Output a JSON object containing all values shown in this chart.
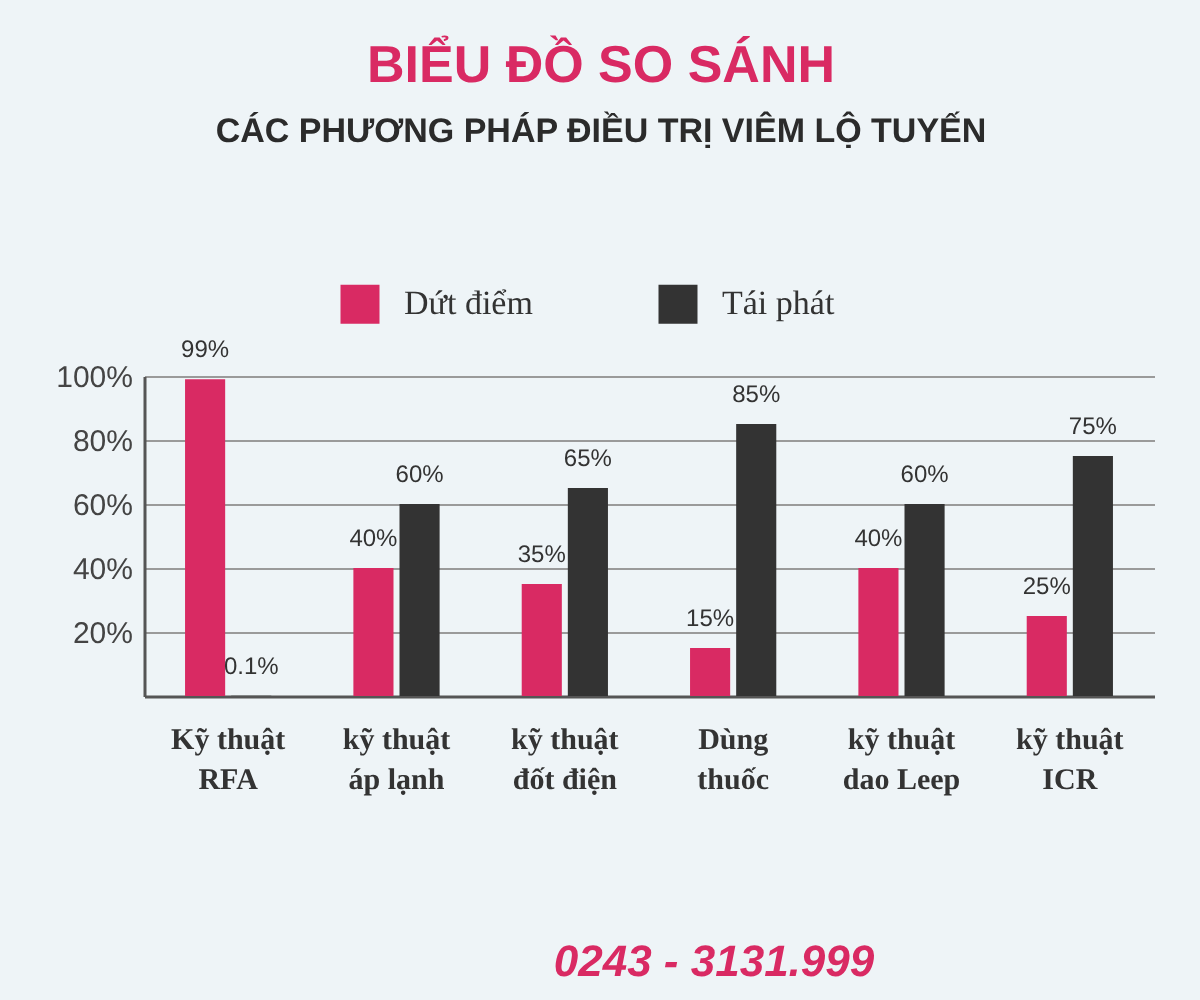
{
  "chart_data": {
    "type": "bar",
    "title": "BIỂU ĐỒ SO SÁNH",
    "subtitle": "CÁC PHƯƠNG PHÁP ĐIỀU TRỊ VIÊM LỘ TUYẾN",
    "categories": [
      "Kỹ thuật\nRFA",
      "kỹ thuật\náp lạnh",
      "kỹ thuật\nđốt điện",
      "Dùng\nthuốc",
      "kỹ thuật\ndao Leep",
      "kỹ thuật\nICR"
    ],
    "series": [
      {
        "name": "Dứt điểm",
        "color": "#d92a63",
        "values": [
          99,
          40,
          35,
          15,
          40,
          25
        ],
        "value_labels": [
          "99%",
          "40%",
          "35%",
          "15%",
          "40%",
          "25%"
        ]
      },
      {
        "name": "Tái phát",
        "color": "#333333",
        "values": [
          0.1,
          60,
          65,
          85,
          60,
          75
        ],
        "value_labels": [
          "0.1%",
          "60%",
          "65%",
          "85%",
          "60%",
          "75%"
        ]
      }
    ],
    "ylim": [
      0,
      100
    ],
    "yticks": [
      {
        "value": 20,
        "label": "20%"
      },
      {
        "value": 40,
        "label": "40%"
      },
      {
        "value": 60,
        "label": "60%"
      },
      {
        "value": 80,
        "label": "80%"
      },
      {
        "value": 100,
        "label": "100%"
      }
    ],
    "grid": "y",
    "legend": "top",
    "annotations": [
      "0243 - 3131.999"
    ]
  }
}
